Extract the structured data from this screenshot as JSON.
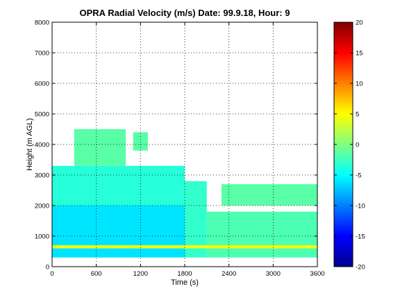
{
  "chart_data": {
    "type": "heatmap",
    "title": "OPRA Radial Velocity (m/s)  Date: 99.9.18, Hour: 9",
    "xlabel": "Time (s)",
    "ylabel": "Height (m AGL)",
    "xlim": [
      0,
      3600
    ],
    "ylim": [
      0,
      8000
    ],
    "x_ticks": [
      "0",
      "600",
      "1200",
      "1800",
      "2400",
      "3000",
      "3600"
    ],
    "y_ticks": [
      "0",
      "1000",
      "2000",
      "3000",
      "4000",
      "5000",
      "6000",
      "7000",
      "8000"
    ],
    "grid": true,
    "colorbar": {
      "colormap": "jet",
      "clim": [
        -20,
        20
      ],
      "ticks": [
        "-20",
        "-15",
        "-10",
        "-5",
        "0",
        "5",
        "10",
        "15",
        "20"
      ]
    },
    "regions": [
      {
        "t": [
          0,
          1800
        ],
        "h": [
          300,
          2000
        ],
        "v": -6
      },
      {
        "t": [
          0,
          1800
        ],
        "h": [
          2000,
          3300
        ],
        "v": -3.5
      },
      {
        "t": [
          1800,
          2100
        ],
        "h": [
          300,
          2800
        ],
        "v": -3
      },
      {
        "t": [
          2100,
          3600
        ],
        "h": [
          300,
          1800
        ],
        "v": -2
      },
      {
        "t": [
          2300,
          3600
        ],
        "h": [
          2000,
          2700
        ],
        "v": -1.5
      },
      {
        "t": [
          300,
          1000
        ],
        "h": [
          3300,
          4500
        ],
        "v": -1.5
      },
      {
        "t": [
          1100,
          1300
        ],
        "h": [
          3800,
          4400
        ],
        "v": -1.5
      },
      {
        "t": [
          0,
          3600
        ],
        "h": [
          600,
          700
        ],
        "v": 5
      }
    ]
  }
}
